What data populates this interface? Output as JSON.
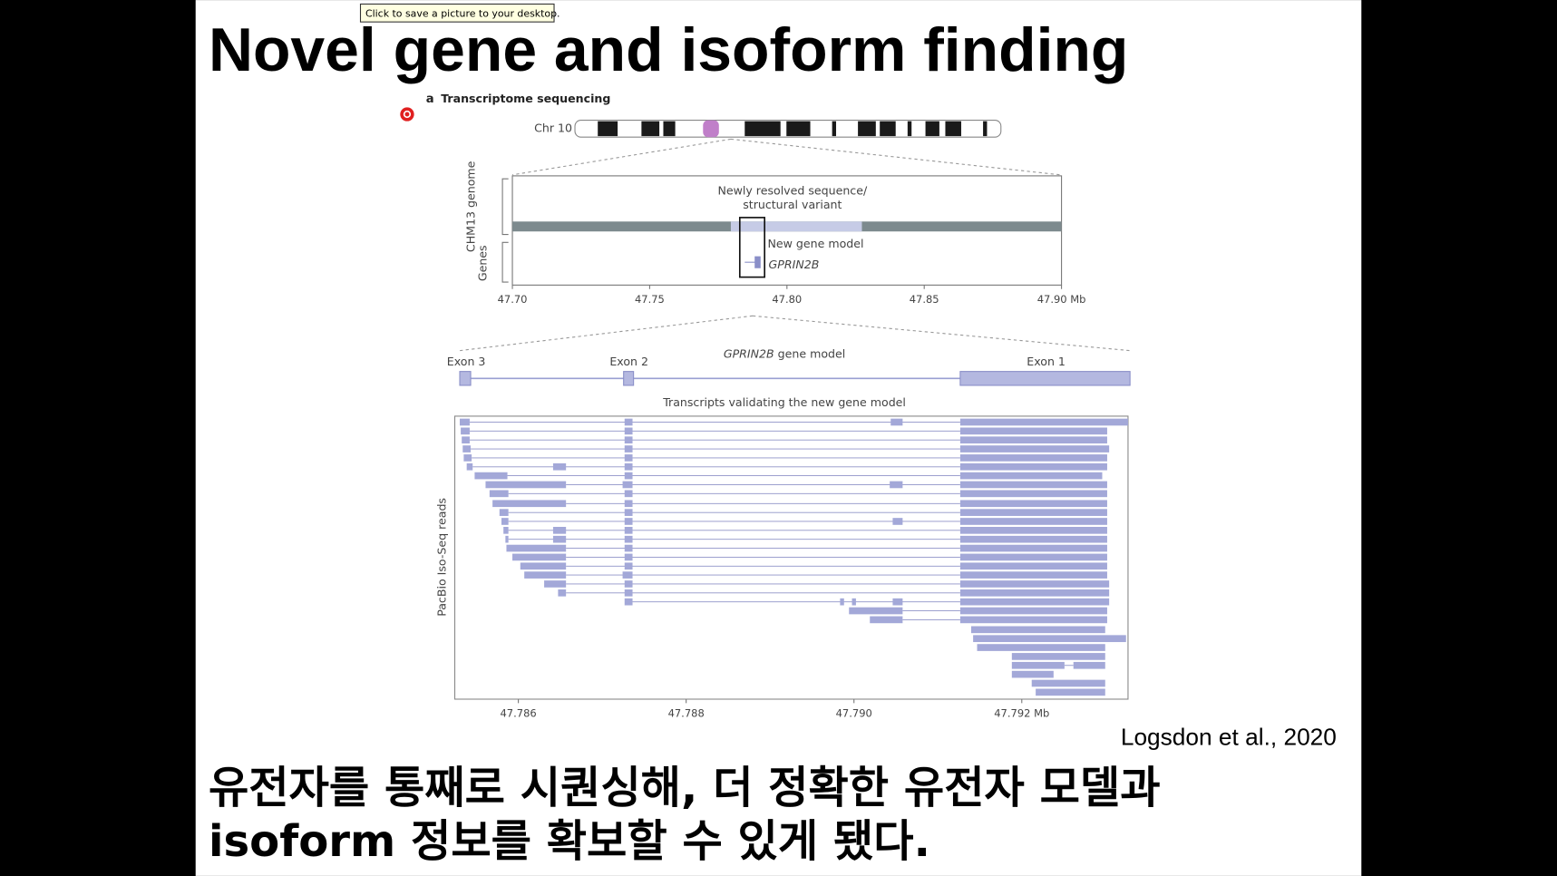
{
  "tooltip": "Click to save a picture to your desktop.",
  "slide": {
    "title": "Novel gene and isoform finding",
    "figure": {
      "panel_letter": "a",
      "panel_title": "Transcriptome sequencing",
      "chromosome": "Chr 10",
      "zoom1": {
        "track_labels": [
          "CHM13 genome",
          "Genes"
        ],
        "annotation_lines": [
          "Newly resolved sequence/",
          "structural variant"
        ],
        "gene_label": "New gene model",
        "gene_name": "GPRIN2B",
        "ticks": [
          "47.70",
          "47.75",
          "47.80",
          "47.85",
          "47.90 Mb"
        ]
      },
      "zoom2": {
        "exons": [
          "Exon 3",
          "Exon 2",
          "Exon 1"
        ],
        "model_title": {
          "gene": "GPRIN2B",
          "rest": " gene model"
        },
        "reads_title": "Transcripts validating the new gene model",
        "reads_axis": "PacBio Iso-Seq reads",
        "ticks": [
          "47.786",
          "47.788",
          "47.790",
          "47.792 Mb"
        ]
      }
    },
    "citation": "Logsdon et al., 2020",
    "body_lines": [
      "유전자를 통째로 시퀀싱해, 더 정확한 유전자 모델과",
      "isoform 정보를 확보할 수 있게 됐다."
    ]
  }
}
